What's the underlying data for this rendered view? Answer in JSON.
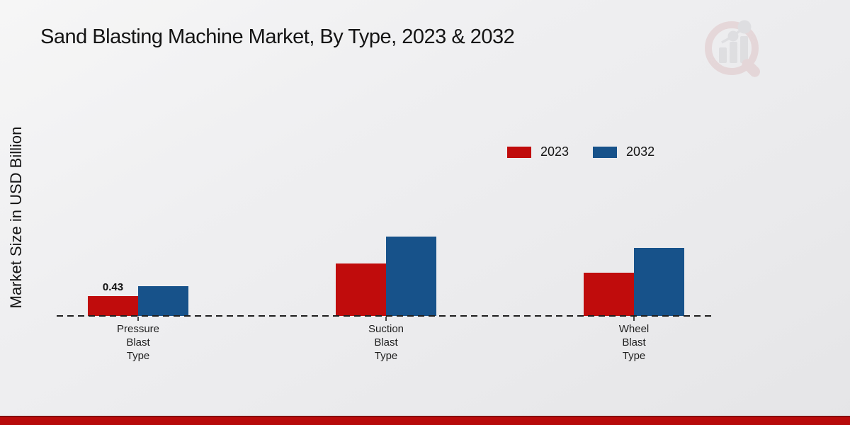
{
  "page": {
    "title": "Sand Blasting Machine Market, By Type, 2023 & 2032",
    "watermark": "market-research-future-logo",
    "footer_stripe_color": "#bb0b0b"
  },
  "chart_data": {
    "type": "bar",
    "title": "Sand Blasting Machine Market, By Type, 2023 & 2032",
    "xlabel": "",
    "ylabel": "Market Size in USD Billion",
    "categories": [
      "Pressure Blast Type",
      "Suction Blast Type",
      "Wheel Blast Type"
    ],
    "series": [
      {
        "name": "2023",
        "color": "#c00c0c",
        "values": [
          0.43,
          1.14,
          0.94
        ]
      },
      {
        "name": "2032",
        "color": "#17528a",
        "values": [
          0.65,
          1.72,
          1.47
        ]
      }
    ],
    "value_labels": [
      {
        "series": 0,
        "category": 0,
        "text": "0.43"
      }
    ],
    "ylim": [
      0,
      2
    ],
    "grid": false,
    "axis_line": "dashed",
    "legend_position": "top-right"
  }
}
